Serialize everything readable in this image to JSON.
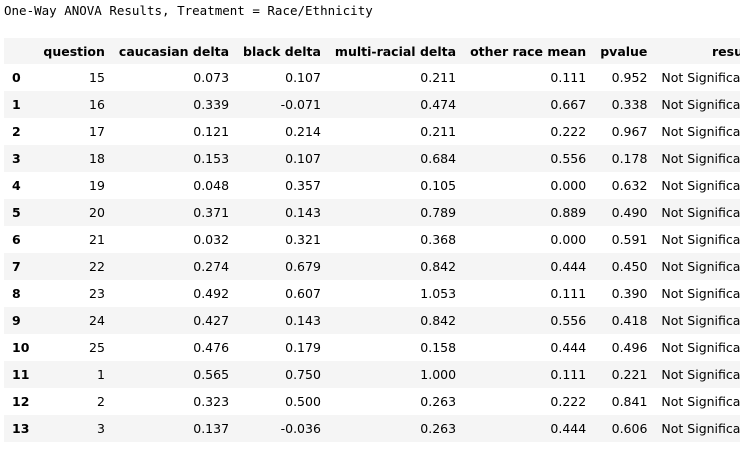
{
  "output": {
    "title": "One-Way ANOVA Results, Treatment = Race/Ethnicity"
  },
  "table": {
    "columns": [
      "",
      "question",
      "caucasian delta",
      "black delta",
      "multi-racial delta",
      "other race mean",
      "pvalue",
      "result"
    ],
    "rows": [
      [
        "0",
        "15",
        "0.073",
        "0.107",
        "0.211",
        "0.111",
        "0.952",
        "Not Significant"
      ],
      [
        "1",
        "16",
        "0.339",
        "-0.071",
        "0.474",
        "0.667",
        "0.338",
        "Not Significant"
      ],
      [
        "2",
        "17",
        "0.121",
        "0.214",
        "0.211",
        "0.222",
        "0.967",
        "Not Significant"
      ],
      [
        "3",
        "18",
        "0.153",
        "0.107",
        "0.684",
        "0.556",
        "0.178",
        "Not Significant"
      ],
      [
        "4",
        "19",
        "0.048",
        "0.357",
        "0.105",
        "0.000",
        "0.632",
        "Not Significant"
      ],
      [
        "5",
        "20",
        "0.371",
        "0.143",
        "0.789",
        "0.889",
        "0.490",
        "Not Significant"
      ],
      [
        "6",
        "21",
        "0.032",
        "0.321",
        "0.368",
        "0.000",
        "0.591",
        "Not Significant"
      ],
      [
        "7",
        "22",
        "0.274",
        "0.679",
        "0.842",
        "0.444",
        "0.450",
        "Not Significant"
      ],
      [
        "8",
        "23",
        "0.492",
        "0.607",
        "1.053",
        "0.111",
        "0.390",
        "Not Significant"
      ],
      [
        "9",
        "24",
        "0.427",
        "0.143",
        "0.842",
        "0.556",
        "0.418",
        "Not Significant"
      ],
      [
        "10",
        "25",
        "0.476",
        "0.179",
        "0.158",
        "0.444",
        "0.496",
        "Not Significant"
      ],
      [
        "11",
        "1",
        "0.565",
        "0.750",
        "1.000",
        "0.111",
        "0.221",
        "Not Significant"
      ],
      [
        "12",
        "2",
        "0.323",
        "0.500",
        "0.263",
        "0.222",
        "0.841",
        "Not Significant"
      ],
      [
        "13",
        "3",
        "0.137",
        "-0.036",
        "0.263",
        "0.444",
        "0.606",
        "Not Significant"
      ]
    ]
  },
  "colors": {
    "stripe": "#f5f5f5",
    "background": "#ffffff",
    "text": "#000000"
  }
}
